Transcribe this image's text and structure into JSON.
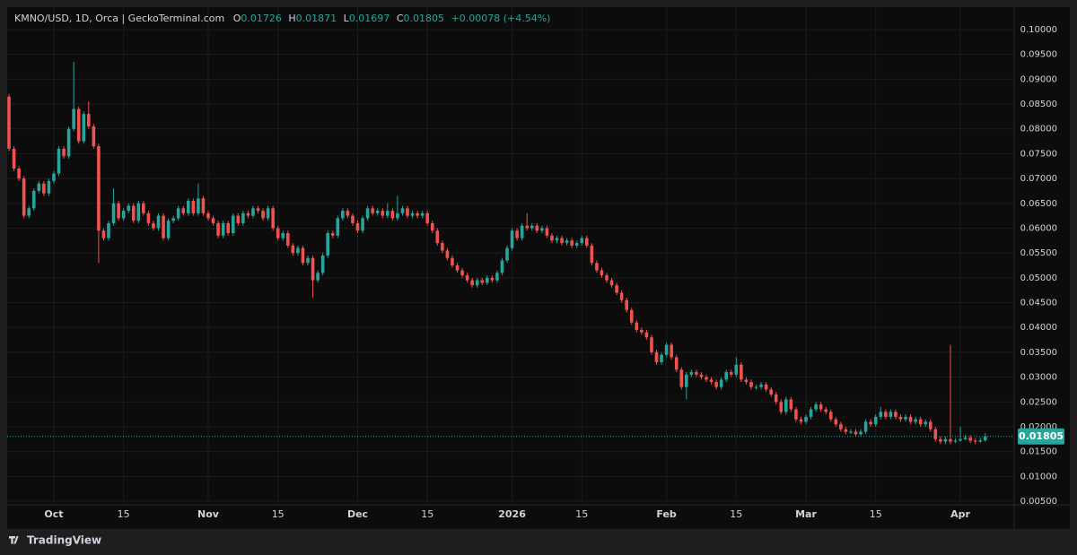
{
  "chart_data": {
    "type": "candlestick",
    "symbol_label": "KMNO/USD, 1D, Orca | GeckoTerminal.com",
    "ohlc_letters": [
      "O",
      "H",
      "L",
      "C"
    ],
    "change_label": "+0.00078 (+4.54%)",
    "brand": "TradingView",
    "up_color": "#26a69a",
    "down_color": "#ef5350",
    "grid": true,
    "xlim": [
      0,
      201.8
    ],
    "xticks": [
      {
        "value": 9,
        "label": "Oct"
      },
      {
        "value": 23,
        "label": "15"
      },
      {
        "value": 40,
        "label": "Nov"
      },
      {
        "value": 54,
        "label": "15"
      },
      {
        "value": 70,
        "label": "Dec"
      },
      {
        "value": 84,
        "label": "15"
      },
      {
        "value": 101,
        "label": "2026"
      },
      {
        "value": 115,
        "label": "15"
      },
      {
        "value": 132,
        "label": "Feb"
      },
      {
        "value": 146,
        "label": "15"
      },
      {
        "value": 160,
        "label": "Mar"
      },
      {
        "value": 174,
        "label": "15"
      },
      {
        "value": 191,
        "label": "Apr"
      }
    ],
    "ylim": [
      0.00428,
      0.10415
    ],
    "yticks": [
      {
        "value": 0.005,
        "label": "0.00500"
      },
      {
        "value": 0.01,
        "label": "0.01000"
      },
      {
        "value": 0.015,
        "label": "0.01500"
      },
      {
        "value": 0.02,
        "label": "0.02000"
      },
      {
        "value": 0.025,
        "label": "0.02500"
      },
      {
        "value": 0.03,
        "label": "0.03000"
      },
      {
        "value": 0.035,
        "label": "0.03500"
      },
      {
        "value": 0.04,
        "label": "0.04000"
      },
      {
        "value": 0.045,
        "label": "0.04500"
      },
      {
        "value": 0.05,
        "label": "0.05000"
      },
      {
        "value": 0.055,
        "label": "0.05500"
      },
      {
        "value": 0.06,
        "label": "0.06000"
      },
      {
        "value": 0.065,
        "label": "0.06500"
      },
      {
        "value": 0.07,
        "label": "0.07000"
      },
      {
        "value": 0.075,
        "label": "0.07500"
      },
      {
        "value": 0.08,
        "label": "0.08000"
      },
      {
        "value": 0.085,
        "label": "0.08500"
      },
      {
        "value": 0.09,
        "label": "0.09000"
      },
      {
        "value": 0.095,
        "label": "0.09500"
      },
      {
        "value": 0.1,
        "label": "0.10000"
      }
    ],
    "open": [
      0.0865,
      0.076,
      0.072,
      0.07,
      0.0625,
      0.064,
      0.0675,
      0.069,
      0.067,
      0.0695,
      0.071,
      0.076,
      0.0745,
      0.08,
      0.084,
      0.0775,
      0.083,
      0.0805,
      0.0765,
      0.0595,
      0.058,
      0.061,
      0.065,
      0.062,
      0.0635,
      0.0645,
      0.0615,
      0.065,
      0.063,
      0.061,
      0.06,
      0.0625,
      0.058,
      0.0615,
      0.062,
      0.064,
      0.063,
      0.0655,
      0.063,
      0.066,
      0.063,
      0.062,
      0.061,
      0.0585,
      0.061,
      0.059,
      0.0625,
      0.061,
      0.063,
      0.0625,
      0.064,
      0.0635,
      0.062,
      0.064,
      0.06,
      0.058,
      0.059,
      0.0565,
      0.055,
      0.056,
      0.053,
      0.054,
      0.0495,
      0.051,
      0.0545,
      0.059,
      0.0585,
      0.062,
      0.0635,
      0.0625,
      0.061,
      0.0595,
      0.062,
      0.064,
      0.063,
      0.0635,
      0.0625,
      0.0635,
      0.062,
      0.063,
      0.064,
      0.0625,
      0.063,
      0.0625,
      0.063,
      0.061,
      0.0595,
      0.057,
      0.0555,
      0.054,
      0.0525,
      0.0515,
      0.0505,
      0.0495,
      0.0485,
      0.0495,
      0.049,
      0.05,
      0.0495,
      0.051,
      0.0535,
      0.056,
      0.0595,
      0.058,
      0.0605,
      0.06,
      0.0605,
      0.0595,
      0.06,
      0.0585,
      0.0575,
      0.058,
      0.057,
      0.0575,
      0.0565,
      0.057,
      0.058,
      0.0565,
      0.053,
      0.0515,
      0.0505,
      0.0495,
      0.0485,
      0.047,
      0.0455,
      0.0435,
      0.041,
      0.0395,
      0.039,
      0.038,
      0.035,
      0.033,
      0.0345,
      0.0365,
      0.034,
      0.0315,
      0.028,
      0.0305,
      0.031,
      0.0305,
      0.03,
      0.0295,
      0.029,
      0.028,
      0.0295,
      0.031,
      0.0305,
      0.0325,
      0.0295,
      0.029,
      0.028,
      0.028,
      0.0285,
      0.0275,
      0.0265,
      0.025,
      0.023,
      0.0255,
      0.0235,
      0.0215,
      0.021,
      0.022,
      0.0235,
      0.0245,
      0.0235,
      0.023,
      0.0215,
      0.0205,
      0.0195,
      0.019,
      0.019,
      0.0185,
      0.019,
      0.021,
      0.0205,
      0.022,
      0.023,
      0.022,
      0.023,
      0.022,
      0.0215,
      0.022,
      0.021,
      0.0215,
      0.0205,
      0.021,
      0.0195,
      0.0175,
      0.017,
      0.0175,
      0.017,
      0.0172,
      0.0175,
      0.0178,
      0.0172,
      0.017,
      0.01726
    ],
    "high": [
      0.087,
      0.0765,
      0.0725,
      0.0705,
      0.0645,
      0.068,
      0.0695,
      0.0695,
      0.07,
      0.0715,
      0.0765,
      0.0765,
      0.0805,
      0.0935,
      0.0845,
      0.0835,
      0.0855,
      0.081,
      0.077,
      0.06,
      0.0615,
      0.068,
      0.0655,
      0.064,
      0.065,
      0.065,
      0.0655,
      0.0655,
      0.0635,
      0.0615,
      0.063,
      0.063,
      0.062,
      0.0625,
      0.0645,
      0.0645,
      0.066,
      0.066,
      0.069,
      0.0665,
      0.0635,
      0.0625,
      0.0615,
      0.0615,
      0.0615,
      0.063,
      0.063,
      0.0635,
      0.0635,
      0.0645,
      0.0645,
      0.064,
      0.0645,
      0.0645,
      0.0605,
      0.0595,
      0.0595,
      0.057,
      0.0565,
      0.0565,
      0.0545,
      0.0545,
      0.0515,
      0.055,
      0.0595,
      0.0595,
      0.0625,
      0.064,
      0.064,
      0.063,
      0.0615,
      0.0625,
      0.0645,
      0.0645,
      0.064,
      0.064,
      0.065,
      0.064,
      0.0665,
      0.0645,
      0.0645,
      0.0635,
      0.0635,
      0.0635,
      0.0635,
      0.0615,
      0.06,
      0.0575,
      0.056,
      0.0545,
      0.053,
      0.052,
      0.051,
      0.05,
      0.05,
      0.05,
      0.0505,
      0.0505,
      0.0515,
      0.054,
      0.0565,
      0.06,
      0.06,
      0.061,
      0.063,
      0.061,
      0.061,
      0.0605,
      0.0605,
      0.059,
      0.0585,
      0.0585,
      0.058,
      0.058,
      0.0575,
      0.0585,
      0.0585,
      0.057,
      0.0535,
      0.052,
      0.051,
      0.05,
      0.049,
      0.0475,
      0.046,
      0.044,
      0.0415,
      0.04,
      0.0395,
      0.0385,
      0.0355,
      0.035,
      0.037,
      0.037,
      0.0345,
      0.032,
      0.031,
      0.0315,
      0.0315,
      0.031,
      0.0305,
      0.03,
      0.0295,
      0.03,
      0.0315,
      0.0315,
      0.034,
      0.033,
      0.03,
      0.0295,
      0.0285,
      0.029,
      0.029,
      0.028,
      0.027,
      0.0255,
      0.026,
      0.026,
      0.024,
      0.022,
      0.0225,
      0.024,
      0.025,
      0.025,
      0.024,
      0.0235,
      0.022,
      0.021,
      0.02,
      0.0195,
      0.0195,
      0.0195,
      0.0215,
      0.0215,
      0.0225,
      0.024,
      0.0235,
      0.0235,
      0.0235,
      0.0225,
      0.0225,
      0.0225,
      0.022,
      0.022,
      0.0215,
      0.0215,
      0.02,
      0.018,
      0.018,
      0.0365,
      0.0177,
      0.02,
      0.0183,
      0.0183,
      0.0177,
      0.0178,
      0.01871
    ],
    "low": [
      0.0755,
      0.0715,
      0.0695,
      0.062,
      0.062,
      0.0635,
      0.067,
      0.0665,
      0.0665,
      0.069,
      0.0705,
      0.074,
      0.074,
      0.0795,
      0.077,
      0.077,
      0.08,
      0.076,
      0.053,
      0.0575,
      0.0575,
      0.0605,
      0.0615,
      0.0615,
      0.063,
      0.061,
      0.061,
      0.0625,
      0.0605,
      0.0595,
      0.0595,
      0.0575,
      0.0575,
      0.061,
      0.0615,
      0.0625,
      0.0625,
      0.0625,
      0.0625,
      0.0625,
      0.0615,
      0.0605,
      0.058,
      0.058,
      0.0585,
      0.0585,
      0.0605,
      0.0605,
      0.062,
      0.062,
      0.063,
      0.0615,
      0.0615,
      0.0595,
      0.0575,
      0.0575,
      0.056,
      0.0545,
      0.0545,
      0.0525,
      0.0525,
      0.046,
      0.049,
      0.0505,
      0.054,
      0.058,
      0.058,
      0.0615,
      0.062,
      0.0605,
      0.059,
      0.059,
      0.0615,
      0.0625,
      0.0625,
      0.062,
      0.062,
      0.0615,
      0.0615,
      0.0625,
      0.062,
      0.062,
      0.062,
      0.062,
      0.0605,
      0.059,
      0.0565,
      0.055,
      0.0535,
      0.052,
      0.051,
      0.05,
      0.049,
      0.048,
      0.048,
      0.0485,
      0.0485,
      0.049,
      0.049,
      0.0505,
      0.053,
      0.0555,
      0.0575,
      0.0575,
      0.0595,
      0.0595,
      0.059,
      0.059,
      0.058,
      0.057,
      0.057,
      0.0565,
      0.0565,
      0.056,
      0.056,
      0.0565,
      0.056,
      0.0525,
      0.051,
      0.05,
      0.049,
      0.048,
      0.0465,
      0.045,
      0.043,
      0.0405,
      0.039,
      0.0385,
      0.0375,
      0.0345,
      0.0325,
      0.0325,
      0.034,
      0.0335,
      0.031,
      0.0275,
      0.0255,
      0.03,
      0.03,
      0.0295,
      0.029,
      0.0285,
      0.0275,
      0.0275,
      0.029,
      0.03,
      0.03,
      0.029,
      0.0285,
      0.0275,
      0.0275,
      0.0275,
      0.027,
      0.026,
      0.0245,
      0.0225,
      0.0225,
      0.023,
      0.021,
      0.0205,
      0.0205,
      0.0215,
      0.023,
      0.023,
      0.0225,
      0.021,
      0.02,
      0.019,
      0.0185,
      0.0185,
      0.018,
      0.018,
      0.0185,
      0.02,
      0.02,
      0.0215,
      0.0215,
      0.0215,
      0.0215,
      0.021,
      0.021,
      0.0205,
      0.0205,
      0.02,
      0.02,
      0.019,
      0.017,
      0.0165,
      0.0165,
      0.0165,
      0.0167,
      0.017,
      0.0173,
      0.0167,
      0.0165,
      0.0168,
      0.01697
    ],
    "close": [
      0.076,
      0.072,
      0.07,
      0.0625,
      0.064,
      0.0675,
      0.069,
      0.067,
      0.0695,
      0.071,
      0.076,
      0.0745,
      0.08,
      0.084,
      0.0775,
      0.083,
      0.0805,
      0.0765,
      0.0595,
      0.058,
      0.061,
      0.065,
      0.062,
      0.0635,
      0.0645,
      0.0615,
      0.065,
      0.063,
      0.061,
      0.06,
      0.0625,
      0.058,
      0.0615,
      0.062,
      0.064,
      0.063,
      0.0655,
      0.063,
      0.066,
      0.063,
      0.062,
      0.061,
      0.0585,
      0.061,
      0.059,
      0.0625,
      0.061,
      0.063,
      0.0625,
      0.064,
      0.0635,
      0.062,
      0.064,
      0.06,
      0.058,
      0.059,
      0.0565,
      0.055,
      0.056,
      0.053,
      0.054,
      0.0495,
      0.051,
      0.0545,
      0.059,
      0.0585,
      0.062,
      0.0635,
      0.0625,
      0.061,
      0.0595,
      0.062,
      0.064,
      0.063,
      0.0635,
      0.0625,
      0.0635,
      0.062,
      0.063,
      0.064,
      0.0625,
      0.063,
      0.0625,
      0.063,
      0.061,
      0.0595,
      0.057,
      0.0555,
      0.054,
      0.0525,
      0.0515,
      0.0505,
      0.0495,
      0.0485,
      0.0495,
      0.049,
      0.05,
      0.0495,
      0.051,
      0.0535,
      0.056,
      0.0595,
      0.058,
      0.0605,
      0.06,
      0.0605,
      0.0595,
      0.06,
      0.0585,
      0.0575,
      0.058,
      0.057,
      0.0575,
      0.0565,
      0.057,
      0.058,
      0.0565,
      0.053,
      0.0515,
      0.0505,
      0.0495,
      0.0485,
      0.047,
      0.0455,
      0.0435,
      0.041,
      0.0395,
      0.039,
      0.038,
      0.035,
      0.033,
      0.0345,
      0.0365,
      0.034,
      0.0315,
      0.028,
      0.0305,
      0.031,
      0.0305,
      0.03,
      0.0295,
      0.029,
      0.028,
      0.0295,
      0.031,
      0.0305,
      0.0325,
      0.0295,
      0.029,
      0.028,
      0.028,
      0.0285,
      0.0275,
      0.0265,
      0.025,
      0.023,
      0.0255,
      0.0235,
      0.0215,
      0.021,
      0.022,
      0.0235,
      0.0245,
      0.0235,
      0.023,
      0.0215,
      0.0205,
      0.0195,
      0.019,
      0.019,
      0.0185,
      0.019,
      0.021,
      0.0205,
      0.022,
      0.023,
      0.022,
      0.023,
      0.022,
      0.0215,
      0.022,
      0.021,
      0.0215,
      0.0205,
      0.021,
      0.0195,
      0.0175,
      0.017,
      0.0175,
      0.017,
      0.0172,
      0.0175,
      0.0178,
      0.0172,
      0.017,
      0.01726,
      0.01805
    ]
  }
}
